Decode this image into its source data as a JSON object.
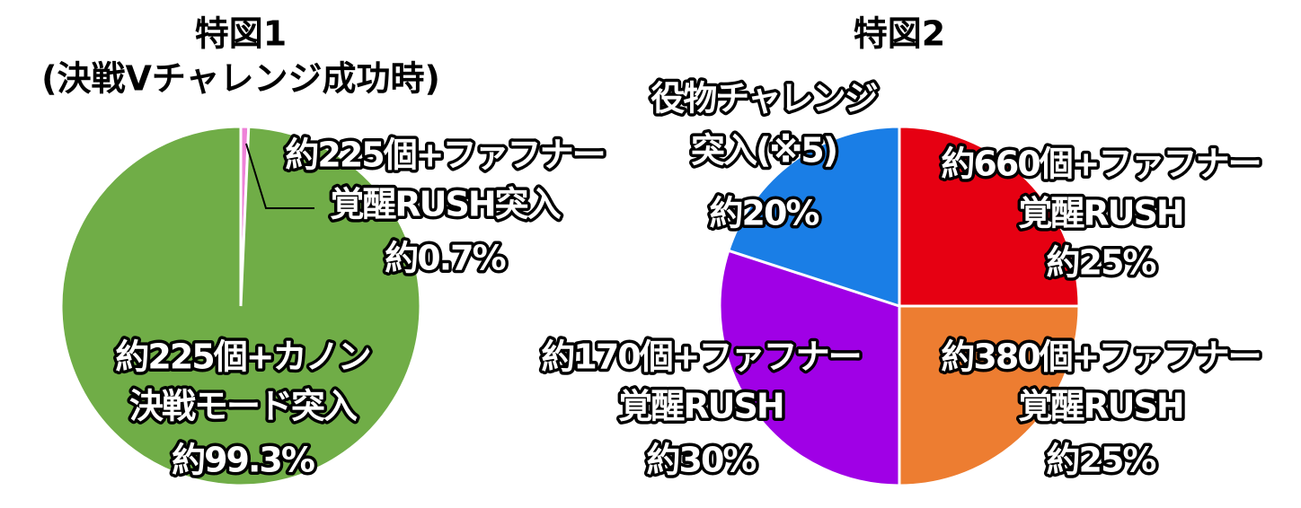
{
  "chart_data": [
    {
      "type": "pie",
      "title": "特図1",
      "subtitle": "(決戦Vチャレンジ成功時)",
      "categories": [
        [
          "約225個+ファフナー",
          "覚醒RUSH突入"
        ],
        [
          "約225個+カノン",
          "決戦モード突入"
        ]
      ],
      "values": [
        0.7,
        99.3
      ],
      "value_labels": [
        "約0.7%",
        "約99.3%"
      ],
      "colors": [
        "#ee82d8",
        "#70ad47"
      ]
    },
    {
      "type": "pie",
      "title": "特図2",
      "categories": [
        [
          "約660個+ファフナー",
          "覚醒RUSH"
        ],
        [
          "約380個+ファフナー",
          "覚醒RUSH"
        ],
        [
          "約170個+ファフナー",
          "覚醒RUSH"
        ],
        [
          "役物チャレンジ",
          "突入(※5)"
        ]
      ],
      "values": [
        25,
        25,
        30,
        20
      ],
      "value_labels": [
        "約25%",
        "約25%",
        "約30%",
        "約20%"
      ],
      "colors": [
        "#e60012",
        "#ed7d31",
        "#a000e6",
        "#1a7ee6"
      ]
    }
  ]
}
